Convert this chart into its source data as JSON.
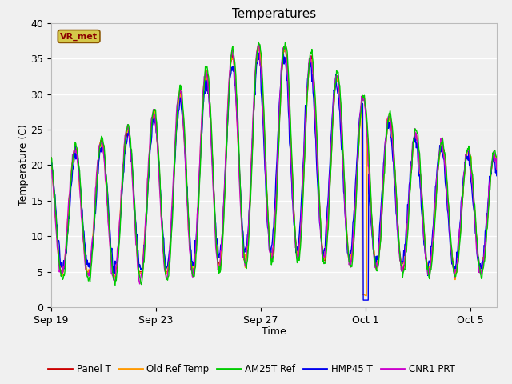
{
  "title": "Temperatures",
  "xlabel": "Time",
  "ylabel": "Temperature (C)",
  "ylim": [
    0,
    40
  ],
  "bg_color": "#f0f0f0",
  "plot_bg": "#f0f0f0",
  "grid_color": "#ffffff",
  "annotation_text": "VR_met",
  "annotation_bg": "#d4c84a",
  "annotation_border": "#8b0000",
  "x_ticks_labels": [
    "Sep 19",
    "Sep 23",
    "Sep 27",
    "Oct 1",
    "Oct 5"
  ],
  "x_ticks_days": [
    0,
    4,
    8,
    12,
    16
  ],
  "y_ticks": [
    0,
    5,
    10,
    15,
    20,
    25,
    30,
    35,
    40
  ],
  "legend_labels": [
    "Panel T",
    "Old Ref Temp",
    "AM25T Ref",
    "HMP45 T",
    "CNR1 PRT"
  ],
  "line_colors": [
    "#cc0000",
    "#ff9900",
    "#00cc00",
    "#0000ee",
    "#cc00cc"
  ],
  "n_days": 17
}
